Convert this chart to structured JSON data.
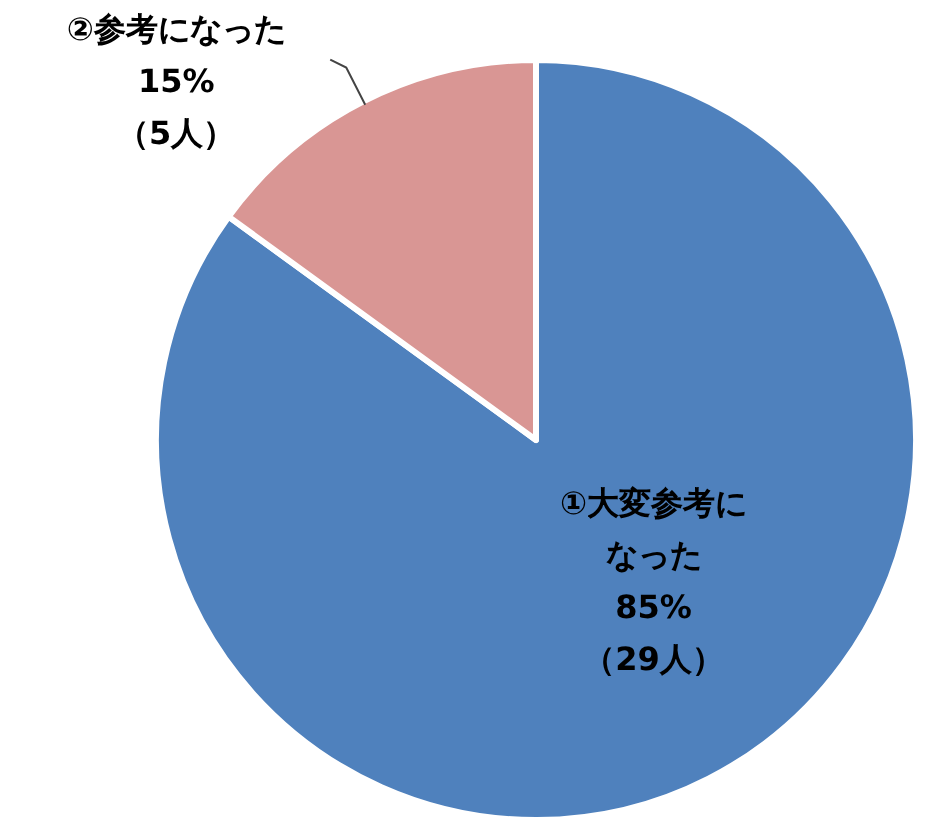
{
  "chart_data": {
    "type": "pie",
    "categories": [
      "①大変参考になった",
      "②参考になった"
    ],
    "values": [
      85,
      15
    ],
    "value_labels": [
      "85%\n（29人）",
      "15%\n（5人）"
    ],
    "colors": [
      "#4f81bd",
      "#d99694"
    ]
  }
}
